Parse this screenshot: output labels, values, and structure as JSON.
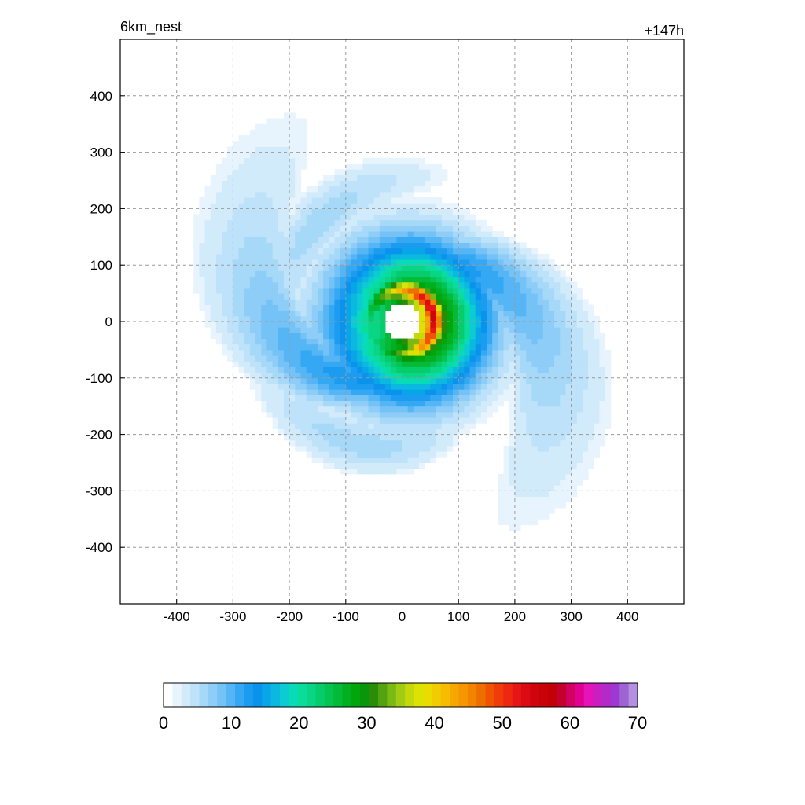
{
  "chart_data": {
    "type": "heatmap",
    "title_left": "6km_nest",
    "title_right": "+147h",
    "xlabel": "",
    "ylabel": "",
    "xlim": [
      -500,
      500
    ],
    "ylim": [
      -500,
      500
    ],
    "x_ticks": [
      -400,
      -300,
      -200,
      -100,
      0,
      100,
      200,
      300,
      400
    ],
    "y_ticks": [
      400,
      300,
      200,
      100,
      0,
      -100,
      -200,
      -300,
      -400
    ],
    "grid": true,
    "field": {
      "kind": "tropical-cyclone precipitation / reflectivity field",
      "eye_center": [
        0,
        0
      ],
      "eye_radius": 35,
      "eyewall_max_value": 55,
      "core_radius": 140,
      "spiral_bands": [
        {
          "direction": "south-west",
          "peak_value": 15
        },
        {
          "direction": "north",
          "peak_value": 12
        },
        {
          "direction": "east",
          "peak_value": 10
        }
      ]
    },
    "colorbar": {
      "min": 0,
      "max": 70,
      "tick_values": [
        0,
        10,
        20,
        30,
        40,
        50,
        60,
        70
      ],
      "colors": [
        "#ffffff",
        "#e8f4fd",
        "#d2ebfb",
        "#bde2fa",
        "#a6d8f8",
        "#8ecdf7",
        "#74c2f6",
        "#56b6f5",
        "#34a8f3",
        "#1c9cf0",
        "#0a93ed",
        "#08a5e8",
        "#0bb9e0",
        "#0ccbd2",
        "#08dbb8",
        "#0adc9c",
        "#0ad585",
        "#07cc6b",
        "#06c452",
        "#03bb38",
        "#01b020",
        "#00a60c",
        "#08960a",
        "#2b8c08",
        "#52a212",
        "#7aba12",
        "#a2cc12",
        "#c4d80c",
        "#dce204",
        "#e8dc00",
        "#f0cc00",
        "#f5bc00",
        "#f6a800",
        "#f69600",
        "#f28400",
        "#ee6e00",
        "#f05400",
        "#ef3c08",
        "#ee2810",
        "#e61616",
        "#dc0a12",
        "#d0040c",
        "#c80208",
        "#c30008",
        "#c4002e",
        "#d20060",
        "#e00092",
        "#e414b8",
        "#cc1ec0",
        "#b42ac8",
        "#9e38d2",
        "#a064d2",
        "#b490e0"
      ]
    }
  }
}
